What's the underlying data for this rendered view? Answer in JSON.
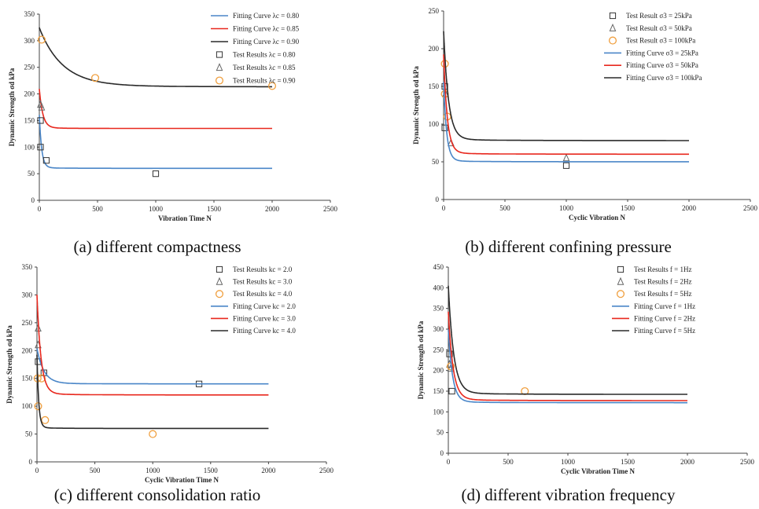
{
  "chart_data": [
    {
      "type": "line",
      "caption": "(a) different compactness",
      "xlabel": "Vibration Time N",
      "ylabel": "Dynamic Strength σd  kPa",
      "xlim": [
        0,
        2500
      ],
      "ylim": [
        0,
        350
      ],
      "xticks": [
        0,
        500,
        1000,
        1500,
        2000,
        2500
      ],
      "yticks": [
        0,
        50,
        100,
        150,
        200,
        250,
        300,
        350
      ],
      "legend": "top-right",
      "series": [
        {
          "name": "Fitting Curve λc = 0.80",
          "kind": "line",
          "color": "#4a86c8",
          "y0": 155,
          "yinf": 60,
          "k": 20
        },
        {
          "name": "Fitting Curve λc = 0.85",
          "kind": "line",
          "color": "#e8281e",
          "y0": 205,
          "yinf": 135,
          "k": 30
        },
        {
          "name": "Fitting Curve λc = 0.90",
          "kind": "line",
          "color": "#2a2a2a",
          "y0": 318,
          "yinf": 213,
          "k": 200
        },
        {
          "name": "Test Results  λc = 0.80",
          "kind": "marker",
          "marker": "square",
          "color": "#333333",
          "x": [
            10,
            10,
            60,
            1000
          ],
          "y": [
            150,
            100,
            75,
            50
          ]
        },
        {
          "name": "Test Results  λc = 0.85",
          "kind": "marker",
          "marker": "triangle",
          "color": "#666666",
          "x": [
            10,
            20
          ],
          "y": [
            180,
            175
          ]
        },
        {
          "name": "Test Results  λc = 0.90",
          "kind": "marker",
          "marker": "circle",
          "color": "#f0a040",
          "x": [
            20,
            480,
            2000
          ],
          "y": [
            302,
            230,
            215
          ]
        }
      ]
    },
    {
      "type": "line",
      "caption": "(b) different confining pressure",
      "xlabel": "Cyclic Vibration N",
      "ylabel": "Dynamic Strength σd  kPa",
      "xlim": [
        0,
        2500
      ],
      "ylim": [
        0,
        250
      ],
      "xticks": [
        0,
        500,
        1000,
        1500,
        2000,
        2500
      ],
      "yticks": [
        0,
        50,
        100,
        150,
        200,
        250
      ],
      "legend": "top-right",
      "series": [
        {
          "name": "Test Result σ3 = 25kPa",
          "kind": "marker",
          "marker": "square",
          "color": "#333333",
          "x": [
            10,
            10,
            1000
          ],
          "y": [
            150,
            95,
            45
          ]
        },
        {
          "name": "Test Result σ3 = 50kPa",
          "kind": "marker",
          "marker": "triangle",
          "color": "#666666",
          "x": [
            15,
            60,
            1000
          ],
          "y": [
            140,
            75,
            55
          ]
        },
        {
          "name": "Test Result σ3 = 100kPa",
          "kind": "marker",
          "marker": "circle",
          "color": "#f0a040",
          "x": [
            10,
            10,
            30
          ],
          "y": [
            180,
            140,
            110
          ]
        },
        {
          "name": "Fitting Curve σ3 = 25kPa",
          "kind": "line",
          "color": "#4a86c8",
          "y0": 150,
          "yinf": 50,
          "k": 25
        },
        {
          "name": "Fitting Curve σ3 = 50kPa",
          "kind": "line",
          "color": "#e8281e",
          "y0": 185,
          "yinf": 60,
          "k": 30
        },
        {
          "name": "Fitting Curve σ3 = 100kPa",
          "kind": "line",
          "color": "#2a2a2a",
          "y0": 215,
          "yinf": 78,
          "k": 40
        }
      ]
    },
    {
      "type": "line",
      "caption": "(c) different consolidation ratio",
      "xlabel": "Cyclic Vibration Time N",
      "ylabel": "Dynamic Strength σd  kPa",
      "xlim": [
        0,
        2500
      ],
      "ylim": [
        0,
        350
      ],
      "xticks": [
        0,
        500,
        1000,
        1500,
        2000,
        2500
      ],
      "yticks": [
        0,
        50,
        100,
        150,
        200,
        250,
        300,
        350
      ],
      "legend": "top-right",
      "series": [
        {
          "name": "Test Results kc = 2.0",
          "kind": "marker",
          "marker": "square",
          "color": "#333333",
          "x": [
            10,
            60,
            1400
          ],
          "y": [
            180,
            160,
            140
          ]
        },
        {
          "name": "Test Results kc = 3.0",
          "kind": "marker",
          "marker": "triangle",
          "color": "#666666",
          "x": [
            10,
            10
          ],
          "y": [
            240,
            210
          ]
        },
        {
          "name": "Test Results kc = 4.0",
          "kind": "marker",
          "marker": "circle",
          "color": "#f0a040",
          "x": [
            5,
            10,
            40,
            70,
            1000
          ],
          "y": [
            150,
            100,
            150,
            75,
            50
          ]
        },
        {
          "name": "Fitting Curve kc = 2.0",
          "kind": "line",
          "color": "#4a86c8",
          "y0": 200,
          "yinf": 140,
          "k": 60
        },
        {
          "name": "Fitting Curve kc = 3.0",
          "kind": "line",
          "color": "#e8281e",
          "y0": 290,
          "yinf": 120,
          "k": 35
        },
        {
          "name": "Fitting Curve kc = 4.0",
          "kind": "line",
          "color": "#2a2a2a",
          "y0": 185,
          "yinf": 60,
          "k": 15
        }
      ]
    },
    {
      "type": "line",
      "caption": "(d) different vibration frequency",
      "xlabel": "Cyclic Vibration Time N",
      "ylabel": "Dynamic Strength σd  kPa",
      "xlim": [
        0,
        2500
      ],
      "ylim": [
        0,
        450
      ],
      "xticks": [
        0,
        500,
        1000,
        1500,
        2000,
        2500
      ],
      "yticks": [
        0,
        50,
        100,
        150,
        200,
        250,
        300,
        350,
        400,
        450
      ],
      "legend": "top-right",
      "series": [
        {
          "name": "Test Results f = 1Hz",
          "kind": "marker",
          "marker": "square",
          "color": "#333333",
          "x": [
            10,
            30
          ],
          "y": [
            240,
            150
          ]
        },
        {
          "name": "Test Results f = 2Hz",
          "kind": "marker",
          "marker": "triangle",
          "color": "#666666",
          "x": [
            10,
            20
          ],
          "y": [
            215,
            205
          ]
        },
        {
          "name": "Test Results f = 5Hz",
          "kind": "marker",
          "marker": "circle",
          "color": "#f0a040",
          "x": [
            20,
            640
          ],
          "y": [
            210,
            150
          ]
        },
        {
          "name": "Fitting Curve f = 1Hz",
          "kind": "line",
          "color": "#4a86c8",
          "y0": 290,
          "yinf": 122,
          "k": 35
        },
        {
          "name": "Fitting Curve f = 2Hz",
          "kind": "line",
          "color": "#e8281e",
          "y0": 330,
          "yinf": 127,
          "k": 40
        },
        {
          "name": "Fitting Curve f = 5Hz",
          "kind": "line",
          "color": "#2a2a2a",
          "y0": 390,
          "yinf": 142,
          "k": 45
        }
      ]
    }
  ]
}
